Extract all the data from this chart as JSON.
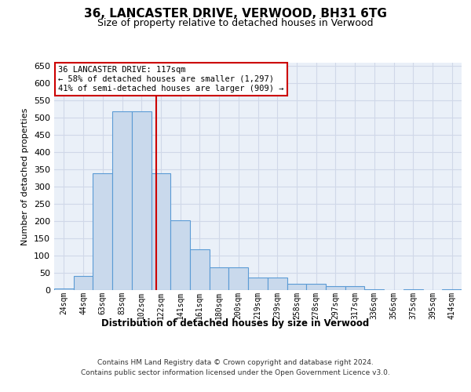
{
  "title": "36, LANCASTER DRIVE, VERWOOD, BH31 6TG",
  "subtitle": "Size of property relative to detached houses in Verwood",
  "xlabel": "Distribution of detached houses by size in Verwood",
  "ylabel": "Number of detached properties",
  "bar_labels": [
    "24sqm",
    "44sqm",
    "63sqm",
    "83sqm",
    "102sqm",
    "122sqm",
    "141sqm",
    "161sqm",
    "180sqm",
    "200sqm",
    "219sqm",
    "239sqm",
    "258sqm",
    "278sqm",
    "297sqm",
    "317sqm",
    "336sqm",
    "356sqm",
    "375sqm",
    "395sqm",
    "414sqm"
  ],
  "bar_values": [
    5,
    42,
    338,
    520,
    520,
    340,
    203,
    118,
    65,
    65,
    37,
    37,
    18,
    18,
    11,
    11,
    3,
    0,
    3,
    0,
    3
  ],
  "bar_color": "#c9d9ec",
  "bar_edge_color": "#5b9bd5",
  "highlight_line_color": "#cc0000",
  "annotation_text": "36 LANCASTER DRIVE: 117sqm\n← 58% of detached houses are smaller (1,297)\n41% of semi-detached houses are larger (909) →",
  "annotation_box_color": "#ffffff",
  "annotation_box_edge": "#cc0000",
  "footer1": "Contains HM Land Registry data © Crown copyright and database right 2024.",
  "footer2": "Contains public sector information licensed under the Open Government Licence v3.0.",
  "ylim": [
    0,
    660
  ],
  "yticks": [
    0,
    50,
    100,
    150,
    200,
    250,
    300,
    350,
    400,
    450,
    500,
    550,
    600,
    650
  ],
  "grid_color": "#d0d8e8",
  "bg_color": "#eaf0f8",
  "fig_bg_color": "#ffffff"
}
